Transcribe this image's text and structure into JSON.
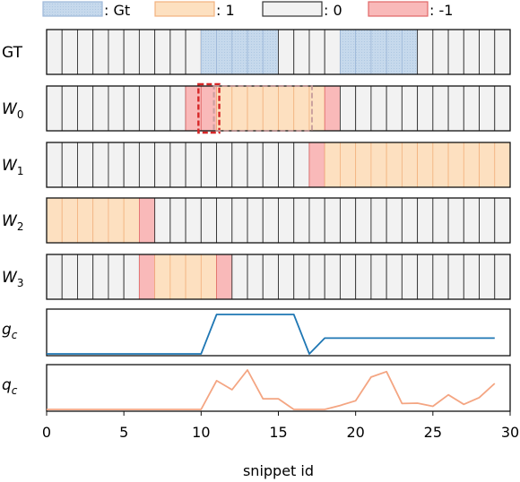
{
  "legend": {
    "items": [
      {
        "label": ": Gt",
        "fill": "#c6d9ec",
        "edge": "#9db8d9",
        "hatched": true
      },
      {
        "label": ": 1",
        "fill": "#fde0c0",
        "edge": "#f2b27e",
        "hatched": false
      },
      {
        "label": ": 0",
        "fill": "#f2f2f2",
        "edge": "#333333",
        "hatched": false
      },
      {
        "label": ": -1",
        "fill": "#f9b9b9",
        "edge": "#e06666",
        "hatched": false
      }
    ]
  },
  "rows": [
    {
      "label": "GT",
      "label_main": "GT",
      "label_sub": "",
      "cells": [
        0,
        0,
        0,
        0,
        0,
        0,
        0,
        0,
        0,
        0,
        "gt",
        "gt",
        "gt",
        "gt",
        "gt",
        0,
        0,
        0,
        0,
        "gt",
        "gt",
        "gt",
        "gt",
        "gt",
        0,
        0,
        0,
        0,
        0,
        0
      ]
    },
    {
      "label": "W0",
      "label_main": "W",
      "label_sub": "0",
      "cells": [
        0,
        0,
        0,
        0,
        0,
        0,
        0,
        0,
        0,
        -1,
        -1,
        1,
        1,
        1,
        1,
        1,
        1,
        1,
        -1,
        0,
        0,
        0,
        0,
        0,
        0,
        0,
        0,
        0,
        0,
        0
      ],
      "dashed_boxes": [
        {
          "from": 10,
          "to": 11,
          "color": "#d62728",
          "style": "strong"
        },
        {
          "from": 11,
          "to": 17,
          "color": "#c49a9a",
          "style": "light"
        }
      ]
    },
    {
      "label": "W1",
      "label_main": "W",
      "label_sub": "1",
      "cells": [
        0,
        0,
        0,
        0,
        0,
        0,
        0,
        0,
        0,
        0,
        0,
        0,
        0,
        0,
        0,
        0,
        0,
        -1,
        1,
        1,
        1,
        1,
        1,
        1,
        1,
        1,
        1,
        1,
        1,
        1
      ]
    },
    {
      "label": "W2",
      "label_main": "W",
      "label_sub": "2",
      "cells": [
        1,
        1,
        1,
        1,
        1,
        1,
        -1,
        0,
        0,
        0,
        0,
        0,
        0,
        0,
        0,
        0,
        0,
        0,
        0,
        0,
        0,
        0,
        0,
        0,
        0,
        0,
        0,
        0,
        0,
        0
      ]
    },
    {
      "label": "W3",
      "label_main": "W",
      "label_sub": "3",
      "cells": [
        0,
        0,
        0,
        0,
        0,
        0,
        -1,
        1,
        1,
        1,
        1,
        -1,
        0,
        0,
        0,
        0,
        0,
        0,
        0,
        0,
        0,
        0,
        0,
        0,
        0,
        0,
        0,
        0,
        0,
        0
      ]
    }
  ],
  "chart_data": [
    {
      "type": "line",
      "label": "gc",
      "label_main": "g",
      "label_sub": "c",
      "color": "#1f77b4",
      "x": [
        0,
        10,
        11,
        16,
        17,
        18,
        29
      ],
      "y": [
        0.0,
        0.0,
        1.0,
        1.0,
        0.0,
        0.4,
        0.4
      ],
      "ylim": [
        0,
        1
      ]
    },
    {
      "type": "line",
      "label": "qc",
      "label_main": "q",
      "label_sub": "c",
      "color": "#f4a582",
      "x": [
        0,
        1,
        2,
        3,
        4,
        5,
        6,
        7,
        8,
        9,
        10,
        11,
        12,
        13,
        14,
        15,
        16,
        17,
        18,
        19,
        20,
        21,
        22,
        23,
        24,
        25,
        26,
        27,
        28,
        29
      ],
      "y": [
        0,
        0,
        0,
        0,
        0,
        0,
        0,
        0,
        0,
        0,
        0,
        0.73,
        0.5,
        1.0,
        0.27,
        0.27,
        0,
        0,
        0,
        0.1,
        0.22,
        0.82,
        0.96,
        0.15,
        0.16,
        0.08,
        0.37,
        0.13,
        0.3,
        0.66
      ],
      "ylim": [
        0,
        1
      ]
    }
  ],
  "axis": {
    "xlabel": "snippet id",
    "ticks": [
      0,
      5,
      10,
      15,
      20,
      25,
      30
    ],
    "tick_labels": [
      "0",
      "5",
      "10",
      "15",
      "20",
      "25",
      "30"
    ],
    "xlim": [
      0,
      30
    ]
  }
}
